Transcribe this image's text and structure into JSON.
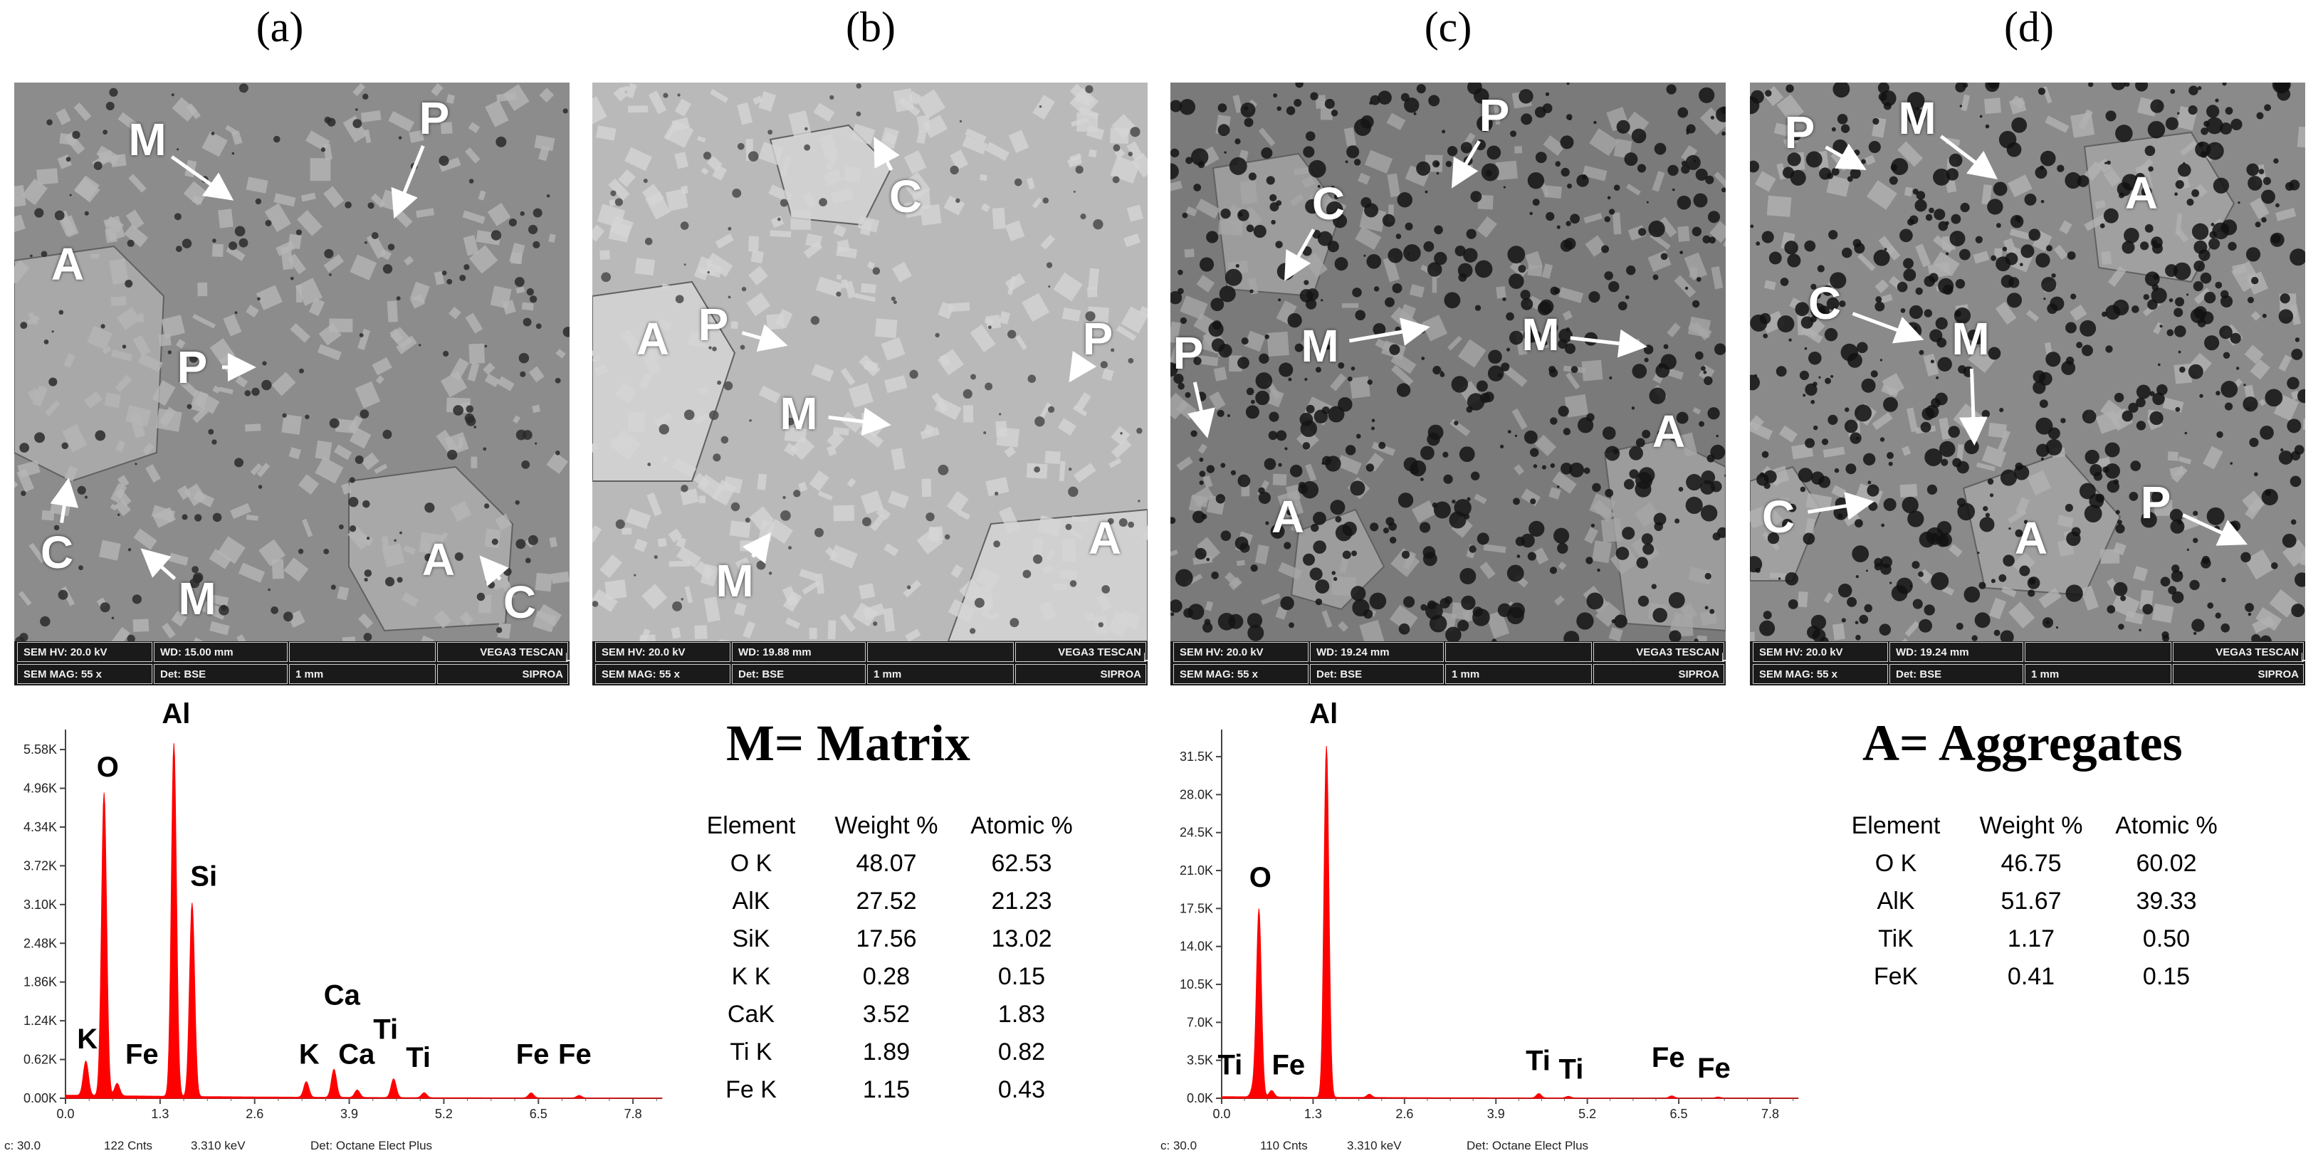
{
  "panels": [
    {
      "label": "(a)",
      "info": {
        "hv": "SEM HV: 20.0 kV",
        "wd": "WD: 15.00 mm",
        "brand": "VEGA3 TESCAN",
        "mag": "SEM MAG: 55 x",
        "det": "Det: BSE",
        "scale": "1 mm",
        "org": "SIPROA"
      },
      "markers": [
        "M",
        "P",
        "A",
        "P",
        "C",
        "M",
        "A",
        "C"
      ]
    },
    {
      "label": "(b)",
      "info": {
        "hv": "SEM HV: 20.0 kV",
        "wd": "WD: 19.88 mm",
        "brand": "VEGA3 TESCAN",
        "mag": "SEM MAG: 55 x",
        "det": "Det: BSE",
        "scale": "1 mm",
        "org": "SIPROA"
      },
      "markers": [
        "C",
        "P",
        "A",
        "P",
        "M",
        "M",
        "A"
      ]
    },
    {
      "label": "(c)",
      "info": {
        "hv": "SEM HV: 20.0 kV",
        "wd": "WD: 19.24 mm",
        "brand": "VEGA3 TESCAN",
        "mag": "SEM MAG: 55 x",
        "det": "Det: BSE",
        "scale": "1 mm",
        "org": "SIPROA"
      },
      "markers": [
        "P",
        "C",
        "M",
        "M",
        "P",
        "A",
        "A"
      ]
    },
    {
      "label": "(d)",
      "info": {
        "hv": "SEM HV: 20.0 kV",
        "wd": "WD: 19.24 mm",
        "brand": "VEGA3 TESCAN",
        "mag": "SEM MAG: 55 x",
        "det": "Det: BSE",
        "scale": "1 mm",
        "org": "SIPROA"
      },
      "markers": [
        "P",
        "M",
        "A",
        "C",
        "M",
        "C",
        "A",
        "P"
      ]
    }
  ],
  "chart_data": [
    {
      "type": "line",
      "title": "",
      "xlabel": "",
      "ylabel": "",
      "x_ticks": [
        "0.0",
        "1.3",
        "2.6",
        "3.9",
        "5.2",
        "6.5",
        "7.8"
      ],
      "y_ticks": [
        "0.00K",
        "0.62K",
        "1.24K",
        "1.86K",
        "2.48K",
        "3.10K",
        "3.72K",
        "4.34K",
        "4.96K",
        "5.58K"
      ],
      "xlim": [
        0,
        8.2
      ],
      "ylim": [
        0,
        5.9
      ],
      "peaks": [
        {
          "x": 0.28,
          "y": 0.55
        },
        {
          "x": 0.53,
          "y": 4.85
        },
        {
          "x": 0.71,
          "y": 0.2
        },
        {
          "x": 1.49,
          "y": 5.65
        },
        {
          "x": 1.74,
          "y": 3.1
        },
        {
          "x": 3.31,
          "y": 0.25
        },
        {
          "x": 3.69,
          "y": 0.45
        },
        {
          "x": 4.01,
          "y": 0.12
        },
        {
          "x": 4.51,
          "y": 0.3
        },
        {
          "x": 4.93,
          "y": 0.08
        },
        {
          "x": 6.4,
          "y": 0.08
        },
        {
          "x": 7.06,
          "y": 0.04
        }
      ],
      "peak_labels": [
        {
          "text": "K",
          "x": 0.3,
          "y": 0.8
        },
        {
          "text": "O",
          "x": 0.58,
          "y": 5.15
        },
        {
          "text": "Fe",
          "x": 1.05,
          "y": 0.55
        },
        {
          "text": "Al",
          "x": 1.52,
          "y": 6.0
        },
        {
          "text": "Si",
          "x": 1.9,
          "y": 3.4
        },
        {
          "text": "K",
          "x": 3.35,
          "y": 0.55
        },
        {
          "text": "Ca",
          "x": 3.8,
          "y": 1.5
        },
        {
          "text": "Ca",
          "x": 4.0,
          "y": 0.55
        },
        {
          "text": "Ti",
          "x": 4.4,
          "y": 0.95
        },
        {
          "text": "Ti",
          "x": 4.85,
          "y": 0.5
        },
        {
          "text": "Fe",
          "x": 6.42,
          "y": 0.55
        },
        {
          "text": "Fe",
          "x": 7.0,
          "y": 0.55
        }
      ],
      "footer": [
        "c: 30.0",
        "122 Cnts",
        "3.310 keV",
        "Det: Octane Elect Plus"
      ]
    },
    {
      "type": "line",
      "title": "",
      "xlabel": "",
      "ylabel": "",
      "x_ticks": [
        "0.0",
        "1.3",
        "2.6",
        "3.9",
        "5.2",
        "6.5",
        "7.8"
      ],
      "y_ticks": [
        "0.0K",
        "3.5K",
        "7.0K",
        "10.5K",
        "14.0K",
        "17.5K",
        "21.0K",
        "24.5K",
        "28.0K",
        "31.5K"
      ],
      "xlim": [
        0,
        8.2
      ],
      "ylim": [
        0,
        34
      ],
      "peaks": [
        {
          "x": 0.45,
          "y": 0.8
        },
        {
          "x": 0.53,
          "y": 17.3
        },
        {
          "x": 0.71,
          "y": 0.6
        },
        {
          "x": 1.49,
          "y": 32.4
        },
        {
          "x": 2.1,
          "y": 0.3
        },
        {
          "x": 4.51,
          "y": 0.4
        },
        {
          "x": 4.93,
          "y": 0.15
        },
        {
          "x": 6.4,
          "y": 0.2
        },
        {
          "x": 7.06,
          "y": 0.1
        }
      ],
      "peak_labels": [
        {
          "text": "Ti",
          "x": 0.12,
          "y": 2.2
        },
        {
          "text": "Fe",
          "x": 0.95,
          "y": 2.2
        },
        {
          "text": "O",
          "x": 0.55,
          "y": 19.5
        },
        {
          "text": "Al",
          "x": 1.45,
          "y": 34.6
        },
        {
          "text": "Ti",
          "x": 4.5,
          "y": 2.6
        },
        {
          "text": "Ti",
          "x": 4.97,
          "y": 1.8
        },
        {
          "text": "Fe",
          "x": 6.35,
          "y": 2.9
        },
        {
          "text": "Fe",
          "x": 7.0,
          "y": 1.9
        }
      ],
      "footer": [
        "c: 30.0",
        "110 Cnts",
        "3.310 keV",
        "Det: Octane Elect Plus"
      ]
    },
    {
      "type": "table",
      "title": "M= Matrix",
      "columns": [
        "Element",
        "Weight %",
        "Atomic %"
      ],
      "rows": [
        [
          "O K",
          "48.07",
          "62.53"
        ],
        [
          "AlK",
          "27.52",
          "21.23"
        ],
        [
          "SiK",
          "17.56",
          "13.02"
        ],
        [
          "K K",
          "0.28",
          "0.15"
        ],
        [
          "CaK",
          "3.52",
          "1.83"
        ],
        [
          "Ti K",
          "1.89",
          "0.82"
        ],
        [
          "Fe K",
          "1.15",
          "0.43"
        ]
      ]
    },
    {
      "type": "table",
      "title": "A= Aggregates",
      "columns": [
        "Element",
        "Weight %",
        "Atomic %"
      ],
      "rows": [
        [
          "O K",
          "46.75",
          "60.02"
        ],
        [
          "AlK",
          "51.67",
          "39.33"
        ],
        [
          "TiK",
          "1.17",
          "0.50"
        ],
        [
          "FeK",
          "0.41",
          "0.15"
        ]
      ]
    }
  ],
  "colors": {
    "spectrum": "#ff0000",
    "sem_a": "#8c8c8c",
    "sem_b": "#bdbdbd",
    "sem_c": "#7a7a7a",
    "sem_d": "#8a8a8a"
  },
  "icons": [
    "arrow-icon"
  ]
}
